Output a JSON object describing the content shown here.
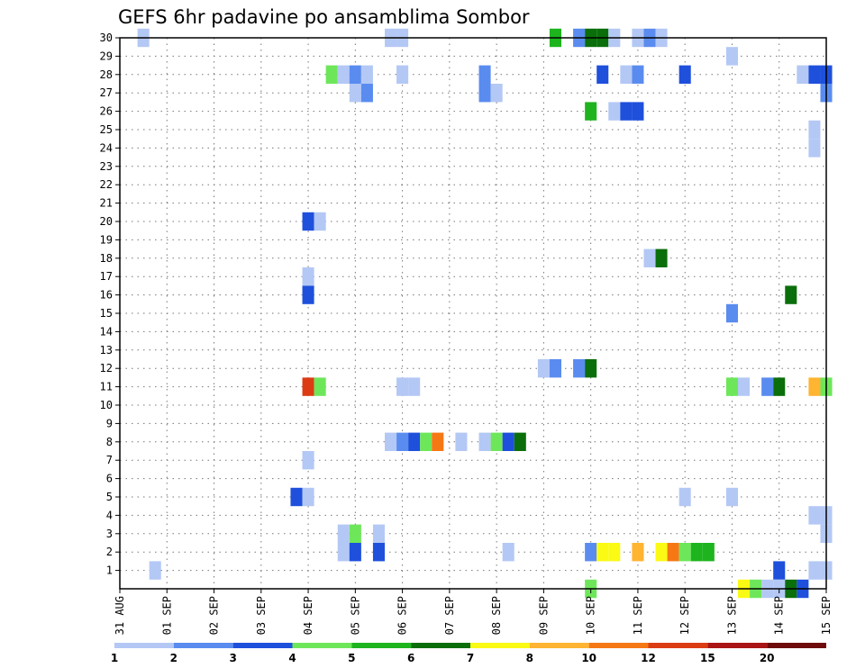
{
  "chart_data": {
    "type": "heatmap",
    "title": "GEFS 6hr padavine po ansamblima Sombor",
    "xlabel": "",
    "ylabel": "",
    "x_tick_labels": [
      "31 AUG",
      "01 SEP",
      "02 SEP",
      "03 SEP",
      "04 SEP",
      "05 SEP",
      "06 SEP",
      "07 SEP",
      "08 SEP",
      "09 SEP",
      "10 SEP",
      "11 SEP",
      "12 SEP",
      "13 SEP",
      "14 SEP",
      "15 SEP"
    ],
    "x_range_days": [
      0,
      15
    ],
    "steps_per_day": 4,
    "y_tick_labels": [
      "1",
      "2",
      "3",
      "4",
      "5",
      "6",
      "7",
      "8",
      "9",
      "10",
      "11",
      "12",
      "13",
      "14",
      "15",
      "16",
      "17",
      "18",
      "19",
      "20",
      "21",
      "22",
      "23",
      "24",
      "25",
      "26",
      "27",
      "28",
      "29",
      "30"
    ],
    "y_range": [
      0,
      30
    ],
    "grid": true,
    "colorbar": {
      "labels": [
        "1",
        "2",
        "3",
        "4",
        "5",
        "6",
        "7",
        "8",
        "10",
        "12",
        "15",
        "20"
      ],
      "colors": [
        "#b4c8f5",
        "#5a8cf0",
        "#1e50dc",
        "#6ee65a",
        "#1eb41e",
        "#0a6e0a",
        "#fafa14",
        "#ffb432",
        "#f57814",
        "#dc3c14",
        "#aa1414",
        "#6e0a0a"
      ]
    },
    "cells": [
      {
        "t": 0.5,
        "m": 30,
        "c": 1
      },
      {
        "t": 5.75,
        "m": 30,
        "c": 1
      },
      {
        "t": 6.0,
        "m": 30,
        "c": 1
      },
      {
        "t": 9.25,
        "m": 30,
        "c": 5
      },
      {
        "t": 9.75,
        "m": 30,
        "c": 2
      },
      {
        "t": 10.0,
        "m": 30,
        "c": 6
      },
      {
        "t": 10.25,
        "m": 30,
        "c": 6
      },
      {
        "t": 10.5,
        "m": 30,
        "c": 1
      },
      {
        "t": 11.0,
        "m": 30,
        "c": 1
      },
      {
        "t": 11.25,
        "m": 30,
        "c": 2
      },
      {
        "t": 11.5,
        "m": 30,
        "c": 1
      },
      {
        "t": 13.0,
        "m": 29,
        "c": 1
      },
      {
        "t": 4.5,
        "m": 28,
        "c": 4
      },
      {
        "t": 4.75,
        "m": 28,
        "c": 1
      },
      {
        "t": 5.0,
        "m": 28,
        "c": 2
      },
      {
        "t": 5.25,
        "m": 28,
        "c": 1
      },
      {
        "t": 6.0,
        "m": 28,
        "c": 1
      },
      {
        "t": 7.75,
        "m": 28,
        "c": 2
      },
      {
        "t": 10.25,
        "m": 28,
        "c": 3
      },
      {
        "t": 10.75,
        "m": 28,
        "c": 1
      },
      {
        "t": 11.0,
        "m": 28,
        "c": 2
      },
      {
        "t": 12.0,
        "m": 28,
        "c": 3
      },
      {
        "t": 14.5,
        "m": 28,
        "c": 1
      },
      {
        "t": 14.75,
        "m": 28,
        "c": 3
      },
      {
        "t": 15.0,
        "m": 28,
        "c": 3
      },
      {
        "t": 5.0,
        "m": 27,
        "c": 1
      },
      {
        "t": 5.25,
        "m": 27,
        "c": 2
      },
      {
        "t": 7.75,
        "m": 27,
        "c": 2
      },
      {
        "t": 8.0,
        "m": 27,
        "c": 1
      },
      {
        "t": 15.0,
        "m": 27,
        "c": 2
      },
      {
        "t": 10.0,
        "m": 26,
        "c": 5
      },
      {
        "t": 10.5,
        "m": 26,
        "c": 1
      },
      {
        "t": 10.75,
        "m": 26,
        "c": 3
      },
      {
        "t": 11.0,
        "m": 26,
        "c": 3
      },
      {
        "t": 14.75,
        "m": 25,
        "c": 1
      },
      {
        "t": 14.75,
        "m": 24,
        "c": 1
      },
      {
        "t": 4.0,
        "m": 20,
        "c": 3
      },
      {
        "t": 4.25,
        "m": 20,
        "c": 1
      },
      {
        "t": 11.25,
        "m": 18,
        "c": 1
      },
      {
        "t": 11.5,
        "m": 18,
        "c": 6
      },
      {
        "t": 4.0,
        "m": 17,
        "c": 1
      },
      {
        "t": 4.0,
        "m": 16,
        "c": 3
      },
      {
        "t": 14.25,
        "m": 16,
        "c": 6
      },
      {
        "t": 13.0,
        "m": 15,
        "c": 2
      },
      {
        "t": 9.0,
        "m": 12,
        "c": 1
      },
      {
        "t": 9.25,
        "m": 12,
        "c": 2
      },
      {
        "t": 9.75,
        "m": 12,
        "c": 2
      },
      {
        "t": 10.0,
        "m": 12,
        "c": 6
      },
      {
        "t": 4.0,
        "m": 11,
        "c": 10
      },
      {
        "t": 4.25,
        "m": 11,
        "c": 4
      },
      {
        "t": 6.0,
        "m": 11,
        "c": 1
      },
      {
        "t": 6.25,
        "m": 11,
        "c": 1
      },
      {
        "t": 13.0,
        "m": 11,
        "c": 4
      },
      {
        "t": 13.25,
        "m": 11,
        "c": 1
      },
      {
        "t": 13.75,
        "m": 11,
        "c": 2
      },
      {
        "t": 14.0,
        "m": 11,
        "c": 6
      },
      {
        "t": 14.75,
        "m": 11,
        "c": 8
      },
      {
        "t": 15.0,
        "m": 11,
        "c": 4
      },
      {
        "t": 5.75,
        "m": 8,
        "c": 1
      },
      {
        "t": 6.0,
        "m": 8,
        "c": 2
      },
      {
        "t": 6.25,
        "m": 8,
        "c": 3
      },
      {
        "t": 6.5,
        "m": 8,
        "c": 4
      },
      {
        "t": 6.75,
        "m": 8,
        "c": 9
      },
      {
        "t": 7.25,
        "m": 8,
        "c": 1
      },
      {
        "t": 7.75,
        "m": 8,
        "c": 1
      },
      {
        "t": 8.0,
        "m": 8,
        "c": 4
      },
      {
        "t": 8.25,
        "m": 8,
        "c": 3
      },
      {
        "t": 8.5,
        "m": 8,
        "c": 6
      },
      {
        "t": 4.0,
        "m": 7,
        "c": 1
      },
      {
        "t": 3.75,
        "m": 5,
        "c": 3
      },
      {
        "t": 4.0,
        "m": 5,
        "c": 1
      },
      {
        "t": 12.0,
        "m": 5,
        "c": 1
      },
      {
        "t": 13.0,
        "m": 5,
        "c": 1
      },
      {
        "t": 14.75,
        "m": 4,
        "c": 1
      },
      {
        "t": 15.0,
        "m": 4,
        "c": 1
      },
      {
        "t": 4.75,
        "m": 3,
        "c": 1
      },
      {
        "t": 5.0,
        "m": 3,
        "c": 4
      },
      {
        "t": 5.5,
        "m": 3,
        "c": 1
      },
      {
        "t": 15.0,
        "m": 3,
        "c": 1
      },
      {
        "t": 4.75,
        "m": 2,
        "c": 1
      },
      {
        "t": 5.0,
        "m": 2,
        "c": 3
      },
      {
        "t": 5.5,
        "m": 2,
        "c": 3
      },
      {
        "t": 8.25,
        "m": 2,
        "c": 1
      },
      {
        "t": 10.0,
        "m": 2,
        "c": 2
      },
      {
        "t": 10.25,
        "m": 2,
        "c": 7
      },
      {
        "t": 10.5,
        "m": 2,
        "c": 7
      },
      {
        "t": 11.0,
        "m": 2,
        "c": 8
      },
      {
        "t": 11.5,
        "m": 2,
        "c": 7
      },
      {
        "t": 11.75,
        "m": 2,
        "c": 9
      },
      {
        "t": 12.0,
        "m": 2,
        "c": 4
      },
      {
        "t": 12.25,
        "m": 2,
        "c": 5
      },
      {
        "t": 12.5,
        "m": 2,
        "c": 5
      },
      {
        "t": 0.75,
        "m": 1,
        "c": 1
      },
      {
        "t": 14.0,
        "m": 1,
        "c": 3
      },
      {
        "t": 14.75,
        "m": 1,
        "c": 1
      },
      {
        "t": 15.0,
        "m": 1,
        "c": 1
      },
      {
        "t": 10.0,
        "m": 0,
        "c": 4
      },
      {
        "t": 13.25,
        "m": 0,
        "c": 7
      },
      {
        "t": 13.5,
        "m": 0,
        "c": 4
      },
      {
        "t": 13.75,
        "m": 0,
        "c": 1
      },
      {
        "t": 14.0,
        "m": 0,
        "c": 1
      },
      {
        "t": 14.25,
        "m": 0,
        "c": 6
      },
      {
        "t": 14.5,
        "m": 0,
        "c": 3
      }
    ]
  }
}
